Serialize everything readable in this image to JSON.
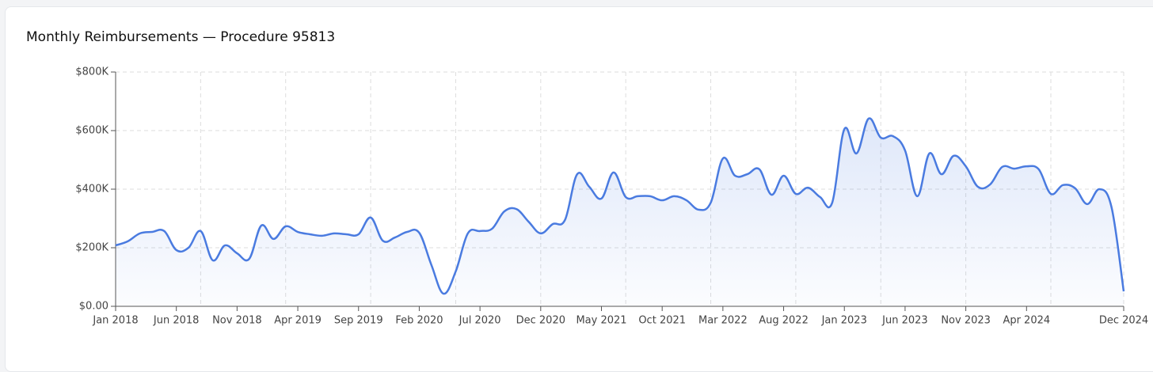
{
  "chart_data": {
    "type": "line",
    "title": "Monthly Reimbursements — Procedure 95813",
    "categories": [
      "Jan 2018",
      null,
      null,
      null,
      null,
      "Jun 2018",
      null,
      null,
      null,
      null,
      "Nov 2018",
      null,
      null,
      null,
      null,
      "Apr 2019",
      null,
      null,
      null,
      null,
      "Sep 2019",
      null,
      null,
      null,
      null,
      "Feb 2020",
      null,
      null,
      null,
      null,
      "Jul 2020",
      null,
      null,
      null,
      null,
      "Dec 2020",
      null,
      null,
      null,
      null,
      "May 2021",
      null,
      null,
      null,
      null,
      "Oct 2021",
      null,
      null,
      null,
      null,
      "Mar 2022",
      null,
      null,
      null,
      null,
      "Aug 2022",
      null,
      null,
      null,
      null,
      "Jan 2023",
      null,
      null,
      null,
      null,
      "Jun 2023",
      null,
      null,
      null,
      null,
      "Nov 2023",
      null,
      null,
      null,
      null,
      "Apr 2024",
      null,
      null,
      null,
      null,
      null,
      null,
      null,
      "Dec 2024"
    ],
    "series": [
      {
        "color": "#4a7be0",
        "values": [
          208000,
          222000,
          249000,
          254000,
          257000,
          192000,
          200000,
          257000,
          157000,
          208000,
          181000,
          162000,
          276000,
          230000,
          273000,
          254000,
          246000,
          241000,
          249000,
          246000,
          246000,
          303000,
          224000,
          235000,
          254000,
          251000,
          141000,
          43000,
          119000,
          249000,
          257000,
          265000,
          324000,
          332000,
          289000,
          249000,
          281000,
          295000,
          451000,
          408000,
          368000,
          457000,
          373000,
          376000,
          376000,
          362000,
          376000,
          362000,
          330000,
          354000,
          505000,
          446000,
          451000,
          468000,
          381000,
          446000,
          384000,
          405000,
          373000,
          354000,
          605000,
          522000,
          641000,
          576000,
          581000,
          532000,
          376000,
          522000,
          451000,
          514000,
          478000,
          408000,
          416000,
          476000,
          470000,
          478000,
          468000,
          384000,
          414000,
          403000,
          349000,
          400000,
          338000,
          51000
        ]
      }
    ],
    "ylim": [
      0,
      800000
    ],
    "yticks": [
      {
        "value": 0,
        "label": "$0.00"
      },
      {
        "value": 200000,
        "label": "$200K"
      },
      {
        "value": 400000,
        "label": "$400K"
      },
      {
        "value": 600000,
        "label": "$600K"
      },
      {
        "value": 800000,
        "label": "$800K"
      }
    ],
    "grid": true,
    "x_grid_step": 7
  }
}
